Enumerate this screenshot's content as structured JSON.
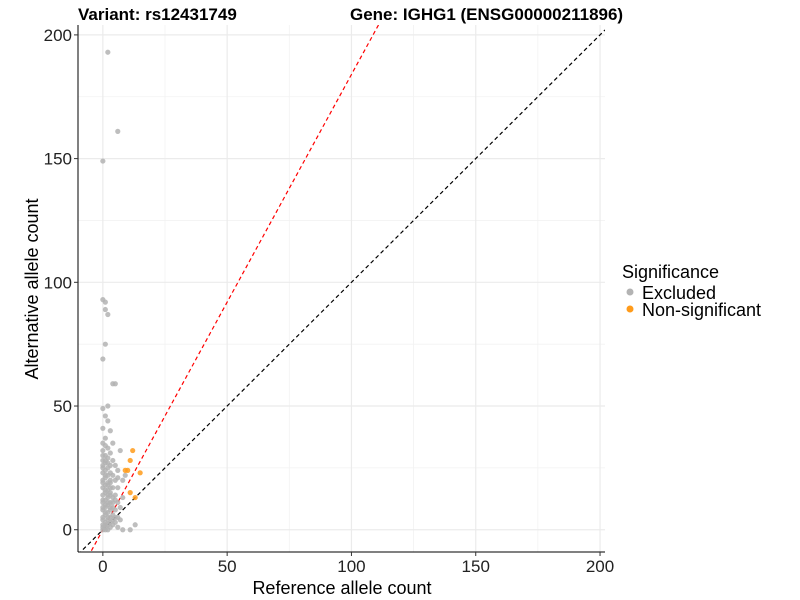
{
  "chart_data": {
    "type": "scatter",
    "title_left": "Variant: rs12431749",
    "title_right": "Gene: IGHG1 (ENSG00000211896)",
    "xlabel": "Reference allele count",
    "ylabel": "Alternative allele count",
    "xlim": [
      -10,
      202
    ],
    "ylim": [
      -9,
      204
    ],
    "xticks": [
      0,
      50,
      100,
      150,
      200
    ],
    "yticks": [
      0,
      50,
      100,
      150,
      200
    ],
    "grid": true,
    "legend": {
      "title": "Significance",
      "placement": "right",
      "entries": [
        {
          "label": "Excluded",
          "color": "#b3b3b3"
        },
        {
          "label": "Non-significant",
          "color": "#ff9b1a"
        }
      ]
    },
    "reference_lines": [
      {
        "name": "identity",
        "slope": 1,
        "intercept": 0,
        "color": "#000000",
        "style": "dashed"
      },
      {
        "name": "fit",
        "slope": 1.84,
        "intercept": 0,
        "color": "#ff0000",
        "style": "dashed"
      }
    ],
    "series": [
      {
        "name": "Excluded",
        "color": "#b3b3b3",
        "points": [
          [
            2,
            193
          ],
          [
            6,
            161
          ],
          [
            0,
            149
          ],
          [
            0,
            93
          ],
          [
            1,
            92
          ],
          [
            1,
            89
          ],
          [
            2,
            87
          ],
          [
            0,
            69
          ],
          [
            1,
            75
          ],
          [
            4,
            59
          ],
          [
            5,
            59
          ],
          [
            0,
            49
          ],
          [
            2,
            50
          ],
          [
            0,
            41
          ],
          [
            1,
            46
          ],
          [
            1,
            37
          ],
          [
            0,
            35
          ],
          [
            1,
            34
          ],
          [
            2,
            33
          ],
          [
            0,
            32
          ],
          [
            3,
            31
          ],
          [
            1,
            30
          ],
          [
            7,
            32
          ],
          [
            2,
            29
          ],
          [
            0,
            28
          ],
          [
            4,
            28
          ],
          [
            1,
            27
          ],
          [
            3,
            26
          ],
          [
            0,
            26
          ],
          [
            5,
            26
          ],
          [
            2,
            25
          ],
          [
            1,
            24
          ],
          [
            6,
            24
          ],
          [
            0,
            23
          ],
          [
            3,
            23
          ],
          [
            2,
            22
          ],
          [
            4,
            22
          ],
          [
            1,
            21
          ],
          [
            0,
            20
          ],
          [
            5,
            20
          ],
          [
            2,
            19
          ],
          [
            3,
            19
          ],
          [
            1,
            18
          ],
          [
            0,
            17
          ],
          [
            4,
            17
          ],
          [
            6,
            17
          ],
          [
            2,
            16
          ],
          [
            1,
            15
          ],
          [
            3,
            15
          ],
          [
            0,
            14
          ],
          [
            5,
            14
          ],
          [
            2,
            13
          ],
          [
            4,
            13
          ],
          [
            1,
            12
          ],
          [
            0,
            11
          ],
          [
            3,
            11
          ],
          [
            6,
            11
          ],
          [
            2,
            10
          ],
          [
            1,
            9
          ],
          [
            4,
            9
          ],
          [
            0,
            8
          ],
          [
            3,
            8
          ],
          [
            5,
            8
          ],
          [
            2,
            7
          ],
          [
            1,
            6
          ],
          [
            0,
            5
          ],
          [
            4,
            6
          ],
          [
            3,
            5
          ],
          [
            2,
            4
          ],
          [
            1,
            3
          ],
          [
            0,
            2
          ],
          [
            5,
            3
          ],
          [
            2,
            2
          ],
          [
            1,
            1
          ],
          [
            0,
            0
          ],
          [
            3,
            1
          ],
          [
            4,
            2
          ],
          [
            6,
            5
          ],
          [
            7,
            4
          ],
          [
            8,
            20
          ],
          [
            9,
            22
          ],
          [
            6,
            21
          ],
          [
            13,
            2
          ],
          [
            6,
            1
          ],
          [
            11,
            0
          ],
          [
            2,
            0
          ],
          [
            8,
            0
          ],
          [
            0,
            30
          ],
          [
            1,
            28
          ],
          [
            0,
            25
          ],
          [
            2,
            27
          ],
          [
            1,
            22
          ],
          [
            3,
            20
          ],
          [
            0,
            19
          ],
          [
            2,
            18
          ],
          [
            1,
            16
          ],
          [
            3,
            14
          ],
          [
            0,
            12
          ],
          [
            2,
            11
          ],
          [
            1,
            10
          ],
          [
            0,
            9
          ],
          [
            3,
            9
          ],
          [
            1,
            7
          ],
          [
            2,
            5
          ],
          [
            0,
            4
          ],
          [
            1,
            2
          ],
          [
            3,
            3
          ],
          [
            4,
            4
          ],
          [
            5,
            5
          ],
          [
            0,
            1
          ],
          [
            1,
            0
          ],
          [
            2,
            14
          ],
          [
            3,
            17
          ],
          [
            4,
            11
          ],
          [
            5,
            12
          ],
          [
            8,
            13
          ],
          [
            7,
            9
          ],
          [
            4,
            35
          ],
          [
            3,
            40
          ],
          [
            2,
            44
          ]
        ]
      },
      {
        "name": "Non-significant",
        "color": "#ff9b1a",
        "points": [
          [
            12,
            32
          ],
          [
            11,
            28
          ],
          [
            10,
            24
          ],
          [
            9,
            24
          ],
          [
            15,
            23
          ],
          [
            11,
            15
          ],
          [
            13,
            13
          ]
        ]
      }
    ]
  }
}
